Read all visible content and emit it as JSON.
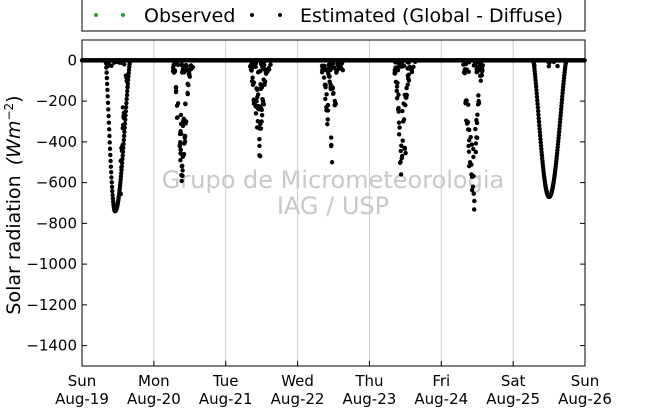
{
  "chart_data": {
    "type": "scatter",
    "ylabel": "Solar radiation",
    "ylabel_unit_base": "(Wm",
    "ylabel_unit_exp": "−2",
    "ylabel_unit_close": ")",
    "ylim": [
      -1500,
      100
    ],
    "yticks": [
      0,
      -200,
      -400,
      -600,
      -800,
      -1000,
      -1200,
      -1400
    ],
    "xlim": [
      "2012-08-19",
      "2012-08-26"
    ],
    "x_ticks": [
      {
        "day": "Sun",
        "date": "Aug-19"
      },
      {
        "day": "Mon",
        "date": "Aug-20"
      },
      {
        "day": "Tue",
        "date": "Aug-21"
      },
      {
        "day": "Wed",
        "date": "Aug-22"
      },
      {
        "day": "Thu",
        "date": "Aug-23"
      },
      {
        "day": "Fri",
        "date": "Aug-24"
      },
      {
        "day": "Sat",
        "date": "Aug-25"
      },
      {
        "day": "Sun",
        "date": "Aug-26"
      }
    ],
    "grid": "vertical",
    "legend_position": "top-center",
    "watermark": [
      "Grupo de Micrometeorologia",
      "IAG / USP"
    ],
    "series": [
      {
        "name": "Observed",
        "color": "#2ca02c",
        "marker": "dot"
      },
      {
        "name": "Estimated (Global - Diffuse)",
        "color": "#000000",
        "marker": "dot",
        "days": [
          {
            "day_index": 0,
            "style": "clear",
            "start": 0.33,
            "end": 0.67,
            "peak": 0.46,
            "min": -740,
            "partial": [
              [
                0.58,
                -320
              ],
              [
                0.62,
                -120
              ],
              [
                0.55,
                -600
              ]
            ]
          },
          {
            "day_index": 1,
            "style": "cloudy",
            "start": 0.26,
            "end": 0.55,
            "min": -540,
            "points": [
              [
                0.28,
                -60
              ],
              [
                0.31,
                -150
              ],
              [
                0.33,
                -280
              ],
              [
                0.36,
                -420
              ],
              [
                0.37,
                -490
              ],
              [
                0.39,
                -520
              ],
              [
                0.4,
                -540
              ],
              [
                0.42,
                -460
              ],
              [
                0.43,
                -380
              ],
              [
                0.45,
                -300
              ],
              [
                0.47,
                -160
              ],
              [
                0.5,
                -80
              ],
              [
                0.52,
                -40
              ],
              [
                0.38,
                -360
              ],
              [
                0.41,
                -300
              ]
            ]
          },
          {
            "day_index": 2,
            "style": "cloudy",
            "start": 0.34,
            "end": 0.66,
            "min": -470,
            "points": [
              [
                0.36,
                -50
              ],
              [
                0.38,
                -120
              ],
              [
                0.4,
                -200
              ],
              [
                0.42,
                -260
              ],
              [
                0.44,
                -180
              ],
              [
                0.45,
                -330
              ],
              [
                0.47,
                -420
              ],
              [
                0.48,
                -470
              ],
              [
                0.5,
                -300
              ],
              [
                0.52,
                -200
              ],
              [
                0.54,
                -120
              ],
              [
                0.56,
                -60
              ],
              [
                0.46,
                -240
              ],
              [
                0.49,
                -140
              ]
            ]
          },
          {
            "day_index": 3,
            "style": "cloudy",
            "start": 0.34,
            "end": 0.64,
            "min": -500,
            "points": [
              [
                0.36,
                -40
              ],
              [
                0.38,
                -120
              ],
              [
                0.4,
                -230
              ],
              [
                0.42,
                -290
              ],
              [
                0.44,
                -80
              ],
              [
                0.46,
                -130
              ],
              [
                0.48,
                -500
              ],
              [
                0.5,
                -160
              ],
              [
                0.52,
                -220
              ],
              [
                0.54,
                -60
              ],
              [
                0.58,
                -30
              ]
            ]
          },
          {
            "day_index": 4,
            "style": "cloudy",
            "start": 0.34,
            "end": 0.64,
            "min": -560,
            "points": [
              [
                0.36,
                -60
              ],
              [
                0.38,
                -150
              ],
              [
                0.4,
                -240
              ],
              [
                0.42,
                -330
              ],
              [
                0.44,
                -560
              ],
              [
                0.45,
                -480
              ],
              [
                0.47,
                -300
              ],
              [
                0.49,
                -430
              ],
              [
                0.5,
                -220
              ],
              [
                0.52,
                -170
              ],
              [
                0.54,
                -90
              ],
              [
                0.56,
                -40
              ]
            ]
          },
          {
            "day_index": 5,
            "style": "cloudy",
            "start": 0.3,
            "end": 0.6,
            "min": -690,
            "points": [
              [
                0.32,
                -60
              ],
              [
                0.34,
                -200
              ],
              [
                0.36,
                -310
              ],
              [
                0.38,
                -420
              ],
              [
                0.4,
                -500
              ],
              [
                0.42,
                -560
              ],
              [
                0.44,
                -620
              ],
              [
                0.46,
                -690
              ],
              [
                0.48,
                -450
              ],
              [
                0.5,
                -380
              ],
              [
                0.52,
                -200
              ],
              [
                0.55,
                -100
              ],
              [
                0.57,
                -50
              ]
            ]
          },
          {
            "day_index": 6,
            "style": "clear",
            "start": 0.28,
            "end": 0.74,
            "peak": 0.5,
            "min": -670,
            "partial": []
          }
        ]
      }
    ]
  }
}
